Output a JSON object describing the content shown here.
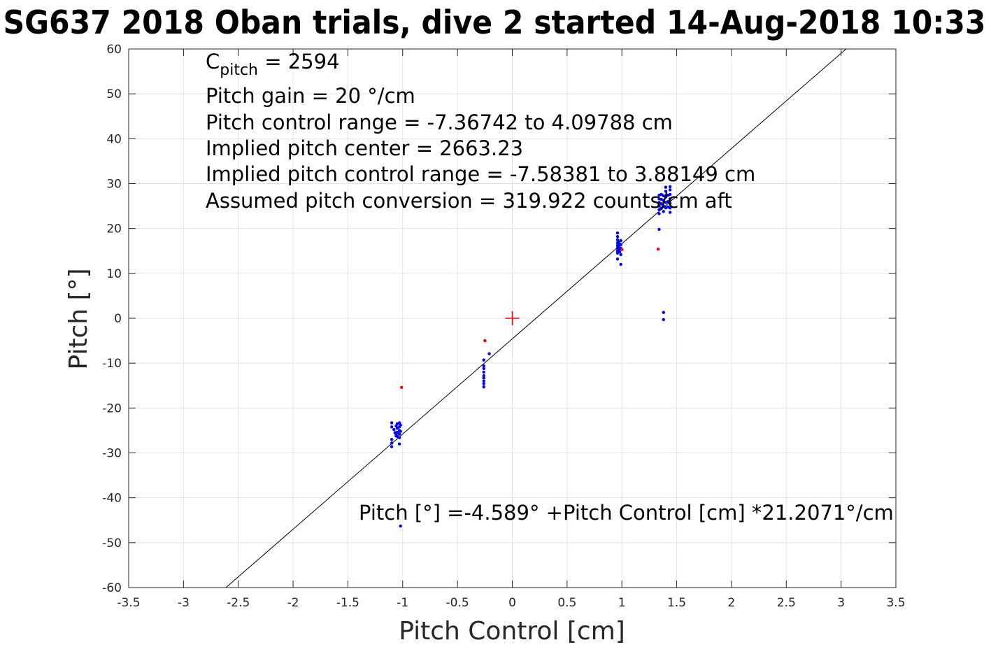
{
  "chart_data": {
    "type": "scatter",
    "title": "SG637 2018 Oban trials, dive 2 started 14-Aug-2018 10:33",
    "xlabel": "Pitch Control [cm]",
    "ylabel": "Pitch [°]",
    "xlim": [
      -3.5,
      3.5
    ],
    "ylim": [
      -60,
      60
    ],
    "x_ticks": [
      -3.5,
      -3,
      -2.5,
      -2,
      -1.5,
      -1,
      -0.5,
      0,
      0.5,
      1,
      1.5,
      2,
      2.5,
      3,
      3.5
    ],
    "x_tick_labels": [
      "-3.5",
      "-3",
      "-2.5",
      "-2",
      "-1.5",
      "-1",
      "-0.5",
      "0",
      "0.5",
      "1",
      "1.5",
      "2",
      "2.5",
      "3",
      "3.5"
    ],
    "y_ticks": [
      60,
      50,
      40,
      30,
      20,
      10,
      0,
      -10,
      -20,
      -30,
      -40,
      -50,
      -60
    ],
    "y_tick_labels": [
      "60",
      "50",
      "40",
      "30",
      "20",
      "10",
      "0",
      "-10",
      "-20",
      "-30",
      "-40",
      "-50",
      "-60"
    ],
    "grid": true,
    "fit": {
      "intercept": -4.589,
      "slope": 21.2071,
      "color": "#000000"
    },
    "annotations": [
      {
        "c_symbol": "C",
        "c_subscript": "pitch",
        "c_value": " = 2594"
      },
      "Pitch gain = 20 °/cm",
      "Pitch control range = -7.36742 to 4.09788 cm",
      "Implied pitch center = 2663.23",
      "Implied pitch control range = -7.58381 to 3.88149 cm",
      "Assumed pitch conversion = 319.922 counts/cm aft"
    ],
    "equation": "Pitch [°] =-4.589° +Pitch Control [cm] *21.2071°/cm",
    "center_marker": {
      "x": 0,
      "y": 0,
      "color": "#ff0000"
    },
    "series": [
      {
        "color": "#0000ff",
        "points": [
          [
            -1.1,
            -23.3
          ],
          [
            -1.1,
            -24.2
          ],
          [
            -1.1,
            -27.0
          ],
          [
            -1.1,
            -27.8
          ],
          [
            -1.1,
            -28.6
          ],
          [
            -1.08,
            -24.8
          ],
          [
            -1.07,
            -25.5
          ],
          [
            -1.06,
            -24.0
          ],
          [
            -1.06,
            -25.8
          ],
          [
            -1.06,
            -26.2
          ],
          [
            -1.05,
            -23.5
          ],
          [
            -1.05,
            -24.5
          ],
          [
            -1.05,
            -25.4
          ],
          [
            -1.05,
            -26.3
          ],
          [
            -1.03,
            -23.3
          ],
          [
            -1.03,
            -24.2
          ],
          [
            -1.03,
            -25.0
          ],
          [
            -1.03,
            -25.8
          ],
          [
            -1.03,
            -26.6
          ],
          [
            -1.03,
            -28.0
          ],
          [
            -1.02,
            -23.8
          ],
          [
            -1.02,
            -25.2
          ],
          [
            -1.02,
            -46.3
          ],
          [
            -0.26,
            -9.3
          ],
          [
            -0.26,
            -10.6
          ],
          [
            -0.26,
            -11.2
          ],
          [
            -0.26,
            -12.0
          ],
          [
            -0.26,
            -12.8
          ],
          [
            -0.26,
            -13.3
          ],
          [
            -0.26,
            -14.0
          ],
          [
            -0.26,
            -14.6
          ],
          [
            -0.26,
            -15.3
          ],
          [
            -0.21,
            -7.9
          ],
          [
            0.96,
            19.0
          ],
          [
            0.96,
            18.2
          ],
          [
            0.96,
            17.5
          ],
          [
            0.96,
            16.8
          ],
          [
            0.96,
            16.2
          ],
          [
            0.96,
            15.6
          ],
          [
            0.96,
            15.0
          ],
          [
            0.96,
            14.5
          ],
          [
            0.96,
            13.2
          ],
          [
            0.97,
            17.0
          ],
          [
            0.97,
            16.0
          ],
          [
            0.97,
            15.2
          ],
          [
            0.98,
            16.5
          ],
          [
            0.98,
            15.5
          ],
          [
            0.98,
            14.8
          ],
          [
            0.99,
            17.3
          ],
          [
            0.99,
            16.4
          ],
          [
            0.99,
            15.6
          ],
          [
            0.99,
            14.2
          ],
          [
            0.99,
            12.0
          ],
          [
            1.34,
            19.8
          ],
          [
            1.34,
            23.3
          ],
          [
            1.34,
            24.2
          ],
          [
            1.34,
            25.0
          ],
          [
            1.34,
            25.8
          ],
          [
            1.34,
            26.6
          ],
          [
            1.34,
            27.4
          ],
          [
            1.36,
            24.5
          ],
          [
            1.36,
            25.5
          ],
          [
            1.36,
            26.5
          ],
          [
            1.36,
            27.6
          ],
          [
            1.38,
            23.8
          ],
          [
            1.38,
            25.0
          ],
          [
            1.38,
            26.2
          ],
          [
            1.38,
            27.3
          ],
          [
            1.38,
            1.3
          ],
          [
            1.38,
            -0.3
          ],
          [
            1.4,
            24.6
          ],
          [
            1.4,
            25.8
          ],
          [
            1.4,
            27.0
          ],
          [
            1.4,
            28.3
          ],
          [
            1.4,
            29.2
          ],
          [
            1.42,
            24.8
          ],
          [
            1.42,
            26.0
          ],
          [
            1.42,
            27.4
          ],
          [
            1.44,
            23.6
          ],
          [
            1.44,
            24.6
          ],
          [
            1.44,
            25.6
          ],
          [
            1.44,
            26.6
          ],
          [
            1.44,
            27.6
          ],
          [
            1.44,
            28.6
          ],
          [
            1.44,
            29.3
          ]
        ]
      },
      {
        "color": "#ff0000",
        "points": [
          [
            -1.01,
            -15.4
          ],
          [
            -0.25,
            -5.0
          ],
          [
            1.0,
            15.3
          ],
          [
            1.33,
            15.4
          ]
        ]
      }
    ]
  }
}
